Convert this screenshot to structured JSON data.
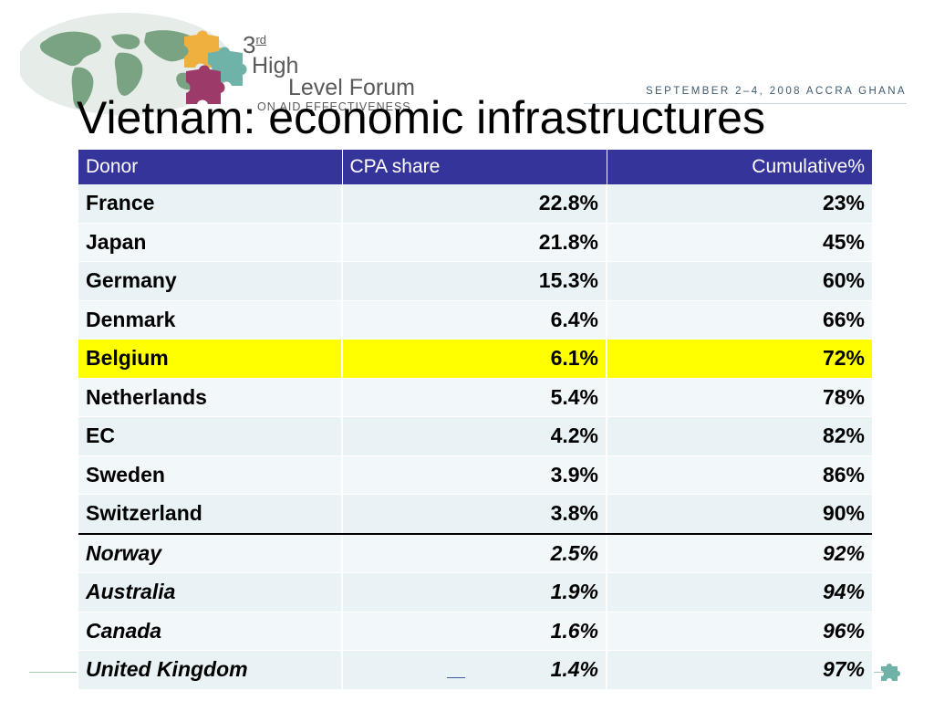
{
  "header": {
    "logo": {
      "ordinal": "3",
      "ordinal_suffix": "rd",
      "line1": "High",
      "line2": "Level Forum",
      "line3": "ON AID EFFECTIVENESS"
    },
    "event_info": "SEPTEMBER 2–4, 2008 ACCRA GHANA"
  },
  "slide": {
    "title": "Vietnam: economic infrastructures"
  },
  "table": {
    "columns": [
      "Donor",
      "CPA share",
      "Cumulative%"
    ],
    "rows": [
      {
        "donor": "France",
        "share": "22.8%",
        "cumulative": "23%"
      },
      {
        "donor": "Japan",
        "share": "21.8%",
        "cumulative": "45%"
      },
      {
        "donor": "Germany",
        "share": "15.3%",
        "cumulative": "60%"
      },
      {
        "donor": "Denmark",
        "share": "6.4%",
        "cumulative": "66%"
      },
      {
        "donor": "Belgium",
        "share": "6.1%",
        "cumulative": "72%",
        "highlighted": true
      },
      {
        "donor": "Netherlands",
        "share": "5.4%",
        "cumulative": "78%"
      },
      {
        "donor": "EC",
        "share": "4.2%",
        "cumulative": "82%"
      },
      {
        "donor": "Sweden",
        "share": "3.9%",
        "cumulative": "86%"
      },
      {
        "donor": "Switzerland",
        "share": "3.8%",
        "cumulative": "90%"
      },
      {
        "donor": "Norway",
        "share": "2.5%",
        "cumulative": "92%",
        "italic": true
      },
      {
        "donor": "Australia",
        "share": "1.9%",
        "cumulative": "94%",
        "italic": true
      },
      {
        "donor": "Canada",
        "share": "1.6%",
        "cumulative": "96%",
        "italic": true
      },
      {
        "donor": "United Kingdom",
        "share": "1.4%",
        "cumulative": "97%",
        "italic": true
      }
    ]
  },
  "colors": {
    "header_bg": "#34349a",
    "highlight": "#ffff00",
    "row_bg": "#e9f2f5",
    "puzzle_orange": "#f0b040",
    "puzzle_teal": "#6fb3a8",
    "puzzle_maroon": "#9c3a6a",
    "map_green": "#7aa383"
  },
  "icons": {
    "logo": "world-map-puzzle-logo",
    "footer": "puzzle-piece-icon"
  }
}
